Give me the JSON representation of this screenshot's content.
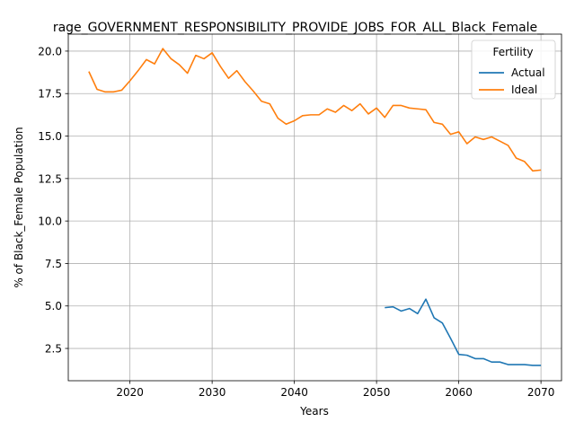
{
  "chart_data": {
    "type": "line",
    "title": "rage_GOVERNMENT_RESPONSIBILITY_PROVIDE_JOBS_FOR_ALL_Black_Female_",
    "xlabel": "Years",
    "ylabel": "% of Black_Female Population",
    "xlim": [
      2012.5,
      2072.5
    ],
    "ylim": [
      0.6,
      21.0
    ],
    "xticks": [
      2020,
      2030,
      2040,
      2050,
      2060,
      2070
    ],
    "yticks": [
      2.5,
      5.0,
      7.5,
      10.0,
      12.5,
      15.0,
      17.5,
      20.0
    ],
    "ytick_labels": [
      "2.5",
      "5.0",
      "7.5",
      "10.0",
      "12.5",
      "15.0",
      "17.5",
      "20.0"
    ],
    "grid": true,
    "legend": {
      "title": "Fertility",
      "placement": "top-right"
    },
    "series": [
      {
        "name": "Actual",
        "color": "#1f77b4",
        "x": [
          2051,
          2052,
          2053,
          2054,
          2055,
          2056,
          2057,
          2058,
          2059,
          2060,
          2061,
          2062,
          2063,
          2064,
          2065,
          2066,
          2067,
          2068,
          2069,
          2070
        ],
        "y": [
          4.9,
          4.95,
          4.7,
          4.85,
          4.55,
          5.4,
          4.3,
          4.0,
          3.1,
          2.15,
          2.1,
          1.9,
          1.9,
          1.7,
          1.7,
          1.55,
          1.55,
          1.55,
          1.5,
          1.5
        ]
      },
      {
        "name": "Ideal",
        "color": "#ff7f0e",
        "x": [
          2015,
          2016,
          2017,
          2018,
          2019,
          2020,
          2021,
          2022,
          2023,
          2024,
          2025,
          2026,
          2027,
          2028,
          2029,
          2030,
          2031,
          2032,
          2033,
          2034,
          2035,
          2036,
          2037,
          2038,
          2039,
          2040,
          2041,
          2042,
          2043,
          2044,
          2045,
          2046,
          2047,
          2048,
          2049,
          2050,
          2051,
          2052,
          2053,
          2054,
          2055,
          2056,
          2057,
          2058,
          2059,
          2060,
          2061,
          2062,
          2063,
          2064,
          2065,
          2066,
          2067,
          2068,
          2069,
          2070
        ],
        "y": [
          18.8,
          17.75,
          17.6,
          17.6,
          17.7,
          18.25,
          18.85,
          19.5,
          19.25,
          20.15,
          19.55,
          19.2,
          18.7,
          19.75,
          19.55,
          19.9,
          19.1,
          18.4,
          18.85,
          18.2,
          17.65,
          17.05,
          16.9,
          16.05,
          15.7,
          15.9,
          16.2,
          16.25,
          16.25,
          16.6,
          16.4,
          16.8,
          16.5,
          16.9,
          16.3,
          16.65,
          16.1,
          16.8,
          16.8,
          16.65,
          16.6,
          16.55,
          15.8,
          15.7,
          15.1,
          15.25,
          14.55,
          14.95,
          14.8,
          14.95,
          14.7,
          14.45,
          13.7,
          13.5,
          12.95,
          13.0
        ]
      }
    ]
  }
}
